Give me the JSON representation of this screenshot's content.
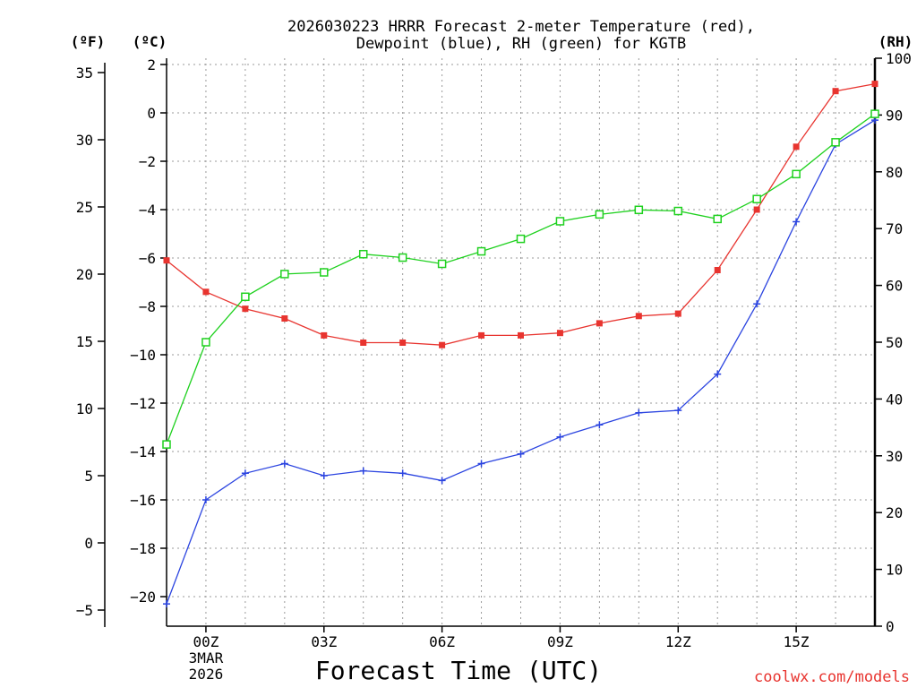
{
  "chart_data": {
    "type": "line",
    "title_line1": "2026030223 HRRR Forecast 2-meter Temperature (red),",
    "title_line2": "Dewpoint (blue), RH (green) for KGTB",
    "xlabel": "Forecast Time (UTC)",
    "credit": "coolwx.com/models",
    "units": {
      "fahrenheit": "(ºF)",
      "celsius": "(ºC)",
      "rh": "(RH)"
    },
    "x": [
      -1,
      0,
      1,
      2,
      3,
      4,
      5,
      6,
      7,
      8,
      9,
      10,
      11,
      12,
      13,
      14,
      15,
      16,
      17
    ],
    "xlim": [
      -1,
      17
    ],
    "x_ticks": [
      {
        "x": 0,
        "label": "00Z",
        "sub1": "3MAR",
        "sub2": "2026"
      },
      {
        "x": 3,
        "label": "03Z"
      },
      {
        "x": 6,
        "label": "06Z"
      },
      {
        "x": 9,
        "label": "09Z"
      },
      {
        "x": 12,
        "label": "12Z"
      },
      {
        "x": 15,
        "label": "15Z"
      }
    ],
    "y_celsius": {
      "ylim": [
        -21,
        2
      ],
      "ticks": [
        2,
        0,
        -2,
        -4,
        -6,
        -8,
        -10,
        -12,
        -14,
        -16,
        -18,
        -20
      ],
      "labels": [
        "2",
        "0",
        "−2",
        "−4",
        "−6",
        "−8",
        "−10",
        "−12",
        "−14",
        "−16",
        "−18",
        "−20"
      ]
    },
    "y_fahrenheit": {
      "ticks": [
        35,
        30,
        25,
        20,
        15,
        10,
        5,
        0,
        -5
      ],
      "labels": [
        "35",
        "30",
        "25",
        "20",
        "15",
        "10",
        "5",
        "0",
        "−5"
      ]
    },
    "y_rh": {
      "ylim": [
        0,
        100
      ],
      "ticks": [
        100,
        90,
        80,
        70,
        60,
        50,
        40,
        30,
        20,
        10,
        0
      ],
      "labels": [
        "100",
        "90",
        "80",
        "70",
        "60",
        "50",
        "40",
        "30",
        "20",
        "10",
        "0"
      ]
    },
    "series": [
      {
        "name": "Temperature",
        "axis": "celsius",
        "color": "#e8342f",
        "marker": "filled-square",
        "values": [
          -6.1,
          -7.4,
          -8.1,
          -8.5,
          -9.2,
          -9.5,
          -9.5,
          -9.6,
          -9.2,
          -9.2,
          -9.1,
          -8.7,
          -8.4,
          -8.3,
          -6.5,
          -4.0,
          -1.4,
          0.9,
          1.2
        ]
      },
      {
        "name": "Dewpoint",
        "axis": "celsius",
        "color": "#2b44e0",
        "marker": "plus",
        "values": [
          -20.3,
          -16.0,
          -14.9,
          -14.5,
          -15.0,
          -14.8,
          -14.9,
          -15.2,
          -14.5,
          -14.1,
          -13.4,
          -12.9,
          -12.4,
          -12.3,
          -10.8,
          -7.9,
          -4.5,
          -1.3,
          -0.3
        ]
      },
      {
        "name": "RH",
        "axis": "rh",
        "color": "#1fd11f",
        "marker": "open-square",
        "values": [
          32,
          50,
          58,
          62,
          62.3,
          65.5,
          64.9,
          63.8,
          66,
          68.2,
          71.3,
          72.5,
          73.3,
          73.1,
          71.7,
          75.2,
          79.6,
          85.2,
          90.2
        ]
      }
    ]
  }
}
